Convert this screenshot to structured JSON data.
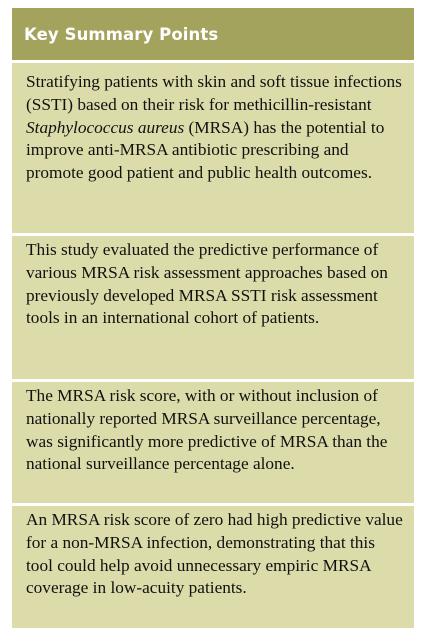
{
  "summary_box": {
    "title": "Key Summary Points",
    "points": [
      {
        "before": "Stratifying patients with skin and soft tissue infections (SSTI) based on their risk for methicillin-resistant ",
        "italic": "Staphylococcus aureus",
        "after": " (MRSA) has the potential to improve anti-MRSA antibiotic prescribing and promote good patient and public health outcomes."
      },
      {
        "text": "This study evaluated the predictive performance of various MRSA risk assessment approaches based on previously developed MRSA SSTI risk assessment tools in an international cohort of patients."
      },
      {
        "text": "The MRSA risk score, with or without inclusion of nationally reported MRSA surveillance percentage, was significantly more predictive of MRSA than the national surveillance percentage alone."
      },
      {
        "text": "An MRSA risk score of zero had high predictive value for a non-MRSA infection, demonstrating that this tool could help avoid unnecessary empiric MRSA coverage in low-acuity patients."
      }
    ]
  }
}
